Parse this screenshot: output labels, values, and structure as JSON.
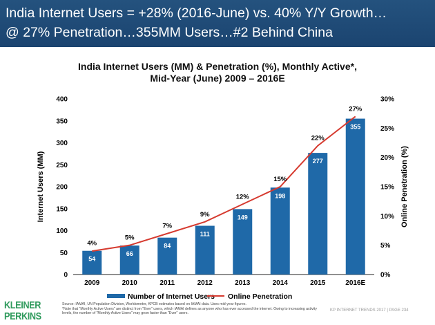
{
  "header": {
    "line1": "India Internet Users = +28% (2016-June) vs. 40% Y/Y Growth…",
    "line2": "@ 27% Penetration…355MM Users…#2 Behind China"
  },
  "chart_data": {
    "type": "bar",
    "title_line1": "India Internet Users (MM) & Penetration (%), Monthly Active*,",
    "title_line2": "Mid-Year (June) 2009 – 2016E",
    "categories": [
      "2009",
      "2010",
      "2011",
      "2012",
      "2013",
      "2014",
      "2015",
      "2016E"
    ],
    "series": [
      {
        "name": "Number of Internet Users",
        "type": "bar",
        "axis": "left",
        "values": [
          54,
          66,
          84,
          111,
          149,
          198,
          277,
          355
        ],
        "color": "#1f69a8"
      },
      {
        "name": "Online Penetration",
        "type": "line",
        "axis": "right",
        "values": [
          4,
          5,
          7,
          9,
          12,
          15,
          22,
          27
        ],
        "color": "#d63a2f"
      }
    ],
    "ylabel": "Internet Users (MM)",
    "ylim": [
      0,
      400
    ],
    "yticks": [
      0,
      50,
      100,
      150,
      200,
      250,
      300,
      350,
      400
    ],
    "y2label": "Online Penetration (%)",
    "y2lim": [
      0,
      30
    ],
    "y2ticks": [
      "0%",
      "5%",
      "10%",
      "15%",
      "20%",
      "25%",
      "30%"
    ],
    "legend": "bottom",
    "grid": false
  },
  "footer": {
    "logo_line1": "KLEINER",
    "logo_line2": "PERKINS",
    "source_line1": "Source: IAMAI, UN Population Division, Worldometer, KPCB estimates based on IAMAI data. Uses mid-year figures.",
    "source_line2": "*Note that \"Monthly Active Users\" are distinct from \"Ever\" users, which IAMAI defines as anyone who has ever accessed the internet. Owing to increasing activity levels, the number of \"Monthly Active Users\" may grow faster than \"Ever\" users.",
    "page": "KP INTERNET TRENDS 2017  |  PAGE 234"
  }
}
